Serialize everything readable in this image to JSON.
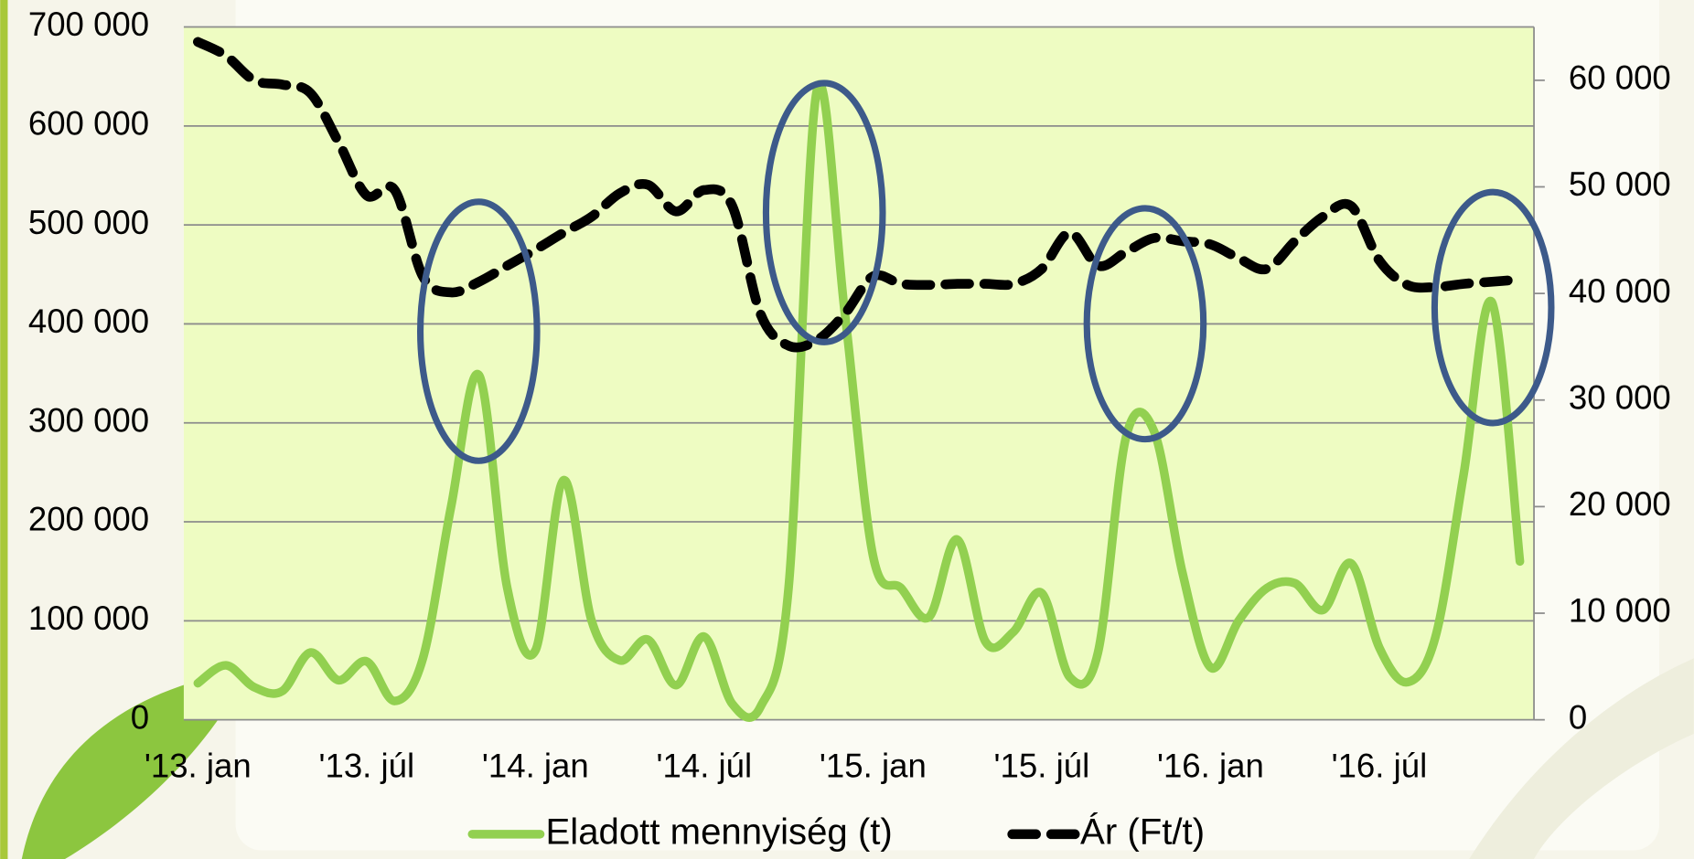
{
  "chart_data": {
    "type": "line",
    "categories": [
      "'13. jan",
      null,
      null,
      null,
      null,
      null,
      "'13. júl",
      null,
      null,
      null,
      null,
      null,
      "'14. jan",
      null,
      null,
      null,
      null,
      null,
      "'14. júl",
      null,
      null,
      null,
      null,
      null,
      "'15. jan",
      null,
      null,
      null,
      null,
      null,
      "'15. júl",
      null,
      null,
      null,
      null,
      null,
      "'16. jan",
      null,
      null,
      null,
      null,
      null,
      "'16. júl",
      null,
      null,
      null,
      null,
      null
    ],
    "series": [
      {
        "name": "Eladott mennyiség (t)",
        "color": "#92d050",
        "dash": false,
        "values": [
          37000,
          55000,
          33000,
          29000,
          68000,
          40000,
          59000,
          19000,
          62000,
          215000,
          348000,
          133000,
          70000,
          242000,
          100000,
          60000,
          81000,
          35000,
          84000,
          16000,
          13000,
          133000,
          635000,
          411000,
          166000,
          133000,
          104000,
          182000,
          79000,
          89000,
          128000,
          43000,
          68000,
          286000,
          291000,
          149000,
          53000,
          100000,
          133000,
          138000,
          111000,
          158000,
          73000,
          38000,
          84000,
          248000,
          422000,
          160000
        ]
      },
      {
        "name": "Ár (Ft/t)",
        "color": "#000000",
        "dash": true,
        "axis": "y2",
        "values": [
          63600,
          62300,
          60000,
          59600,
          58800,
          54200,
          49200,
          49700,
          41600,
          40100,
          41100,
          42600,
          44100,
          45700,
          47200,
          49400,
          50200,
          47700,
          49700,
          48200,
          38100,
          35100,
          35600,
          38100,
          41600,
          40900,
          40800,
          40900,
          40900,
          40900,
          42300,
          45700,
          42600,
          43900,
          45200,
          44900,
          44600,
          43300,
          42300,
          44900,
          47200,
          48200,
          43100,
          40800,
          40600,
          40900,
          41100,
          41300
        ]
      }
    ],
    "ylim": [
      0,
      700000
    ],
    "yticks": [
      0,
      {
        "value": 100000,
        "label": "100 000"
      },
      {
        "value": 200000,
        "label": "200 000"
      },
      {
        "value": 300000,
        "label": "300 000"
      },
      {
        "value": 400000,
        "label": "400 000"
      },
      {
        "value": 500000,
        "label": "500 000"
      },
      {
        "value": 600000,
        "label": "600 000"
      },
      {
        "value": 700000,
        "label": "700 000"
      }
    ],
    "y2lim": [
      0,
      65000
    ],
    "y2ticks": [
      0,
      {
        "value": 10000,
        "label": "10 000"
      },
      {
        "value": 20000,
        "label": "20 000"
      },
      {
        "value": 30000,
        "label": "30 000"
      },
      {
        "value": 40000,
        "label": "40 000"
      },
      {
        "value": 50000,
        "label": "50 000"
      },
      {
        "value": 60000,
        "label": "60 000"
      }
    ],
    "grid": true,
    "legend": "bottom"
  }
}
